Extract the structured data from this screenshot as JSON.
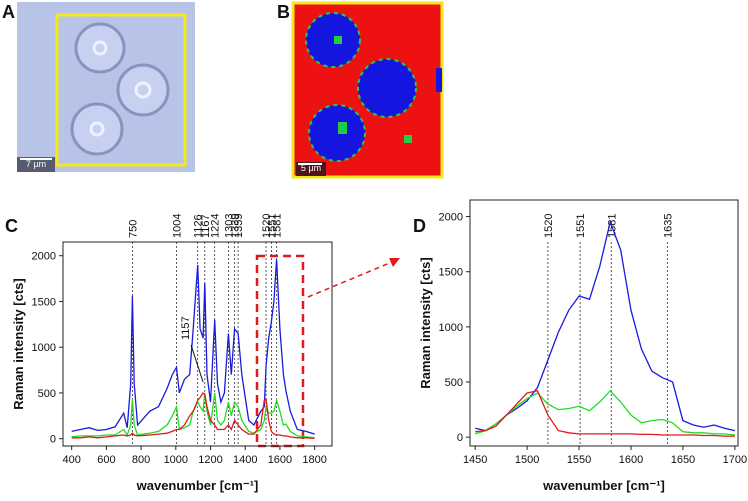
{
  "panels": {
    "a": {
      "label": "A",
      "scale_bar": "7 µm"
    },
    "b": {
      "label": "B",
      "scale_bar": "5 µm"
    }
  },
  "chart_data": [
    {
      "type": "line",
      "panel_label": "C",
      "xlabel": "wavenumber [cm⁻¹]",
      "ylabel": "Raman intensity [cts]",
      "xlim": [
        350,
        1900
      ],
      "ylim": [
        -80,
        2150
      ],
      "xticks": [
        400,
        600,
        800,
        1000,
        1200,
        1400,
        1600,
        1800
      ],
      "yticks": [
        0,
        500,
        1000,
        1500,
        2000
      ],
      "peaks": [
        750,
        1004,
        1126,
        1167,
        1224,
        1303,
        1339,
        1359,
        1520,
        1551,
        1581
      ],
      "annotation": {
        "x": 1157,
        "label": "1157"
      },
      "x": [
        400,
        450,
        500,
        550,
        600,
        650,
        700,
        720,
        740,
        750,
        760,
        780,
        850,
        900,
        950,
        980,
        1004,
        1020,
        1050,
        1080,
        1100,
        1126,
        1140,
        1157,
        1167,
        1180,
        1200,
        1224,
        1240,
        1260,
        1280,
        1303,
        1320,
        1339,
        1359,
        1380,
        1420,
        1450,
        1490,
        1510,
        1520,
        1535,
        1551,
        1565,
        1581,
        1600,
        1620,
        1635,
        1660,
        1700,
        1750,
        1800
      ],
      "series": [
        {
          "color": "#1a1adf",
          "values": [
            80,
            100,
            120,
            90,
            100,
            130,
            280,
            120,
            600,
            1560,
            600,
            150,
            300,
            350,
            550,
            700,
            780,
            500,
            650,
            700,
            1200,
            1900,
            1200,
            1100,
            1700,
            700,
            400,
            1300,
            600,
            400,
            500,
            1150,
            700,
            1200,
            1150,
            700,
            200,
            150,
            300,
            350,
            800,
            1100,
            1280,
            1500,
            1960,
            1200,
            700,
            520,
            300,
            100,
            80,
            50
          ]
        },
        {
          "color": "#22dd22",
          "values": [
            20,
            30,
            30,
            30,
            40,
            40,
            100,
            40,
            150,
            430,
            150,
            40,
            60,
            80,
            150,
            250,
            350,
            100,
            120,
            150,
            300,
            400,
            350,
            300,
            500,
            300,
            150,
            500,
            200,
            150,
            200,
            400,
            250,
            400,
            350,
            200,
            80,
            60,
            100,
            200,
            350,
            280,
            280,
            300,
            420,
            300,
            150,
            160,
            80,
            30,
            20,
            10
          ]
        },
        {
          "color": "#e01a1a",
          "values": [
            10,
            10,
            20,
            10,
            20,
            30,
            40,
            30,
            40,
            60,
            40,
            30,
            40,
            50,
            60,
            80,
            100,
            100,
            150,
            250,
            300,
            420,
            450,
            500,
            480,
            350,
            200,
            150,
            100,
            100,
            100,
            150,
            100,
            200,
            150,
            100,
            50,
            50,
            150,
            420,
            430,
            200,
            80,
            50,
            40,
            40,
            30,
            30,
            20,
            10,
            10,
            5
          ]
        }
      ]
    },
    {
      "type": "line",
      "panel_label": "D",
      "xlabel": "wavenumber [cm⁻¹]",
      "ylabel": "Raman intensity [cts]",
      "xlim": [
        1445,
        1703
      ],
      "ylim": [
        -80,
        2150
      ],
      "xticks": [
        1450,
        1500,
        1550,
        1600,
        1650,
        1700
      ],
      "yticks": [
        0,
        500,
        1000,
        1500,
        2000
      ],
      "peaks": [
        1520,
        1551,
        1581,
        1635
      ],
      "x": [
        1450,
        1460,
        1470,
        1480,
        1490,
        1500,
        1510,
        1520,
        1530,
        1540,
        1550,
        1560,
        1570,
        1580,
        1590,
        1600,
        1610,
        1620,
        1630,
        1640,
        1650,
        1660,
        1670,
        1680,
        1690,
        1700
      ],
      "series": [
        {
          "color": "#1a1adf",
          "values": [
            80,
            60,
            120,
            200,
            260,
            330,
            450,
            700,
            950,
            1150,
            1280,
            1250,
            1550,
            1950,
            1700,
            1150,
            800,
            600,
            540,
            500,
            150,
            110,
            90,
            110,
            80,
            60
          ]
        },
        {
          "color": "#22dd22",
          "values": [
            30,
            60,
            120,
            200,
            280,
            350,
            400,
            300,
            250,
            260,
            280,
            240,
            320,
            420,
            320,
            200,
            130,
            150,
            160,
            130,
            50,
            40,
            40,
            30,
            30,
            20
          ]
        },
        {
          "color": "#e01a1a",
          "values": [
            50,
            60,
            100,
            200,
            300,
            400,
            420,
            200,
            60,
            40,
            30,
            30,
            30,
            30,
            30,
            30,
            25,
            25,
            20,
            20,
            20,
            20,
            15,
            15,
            10,
            10
          ]
        }
      ]
    }
  ]
}
